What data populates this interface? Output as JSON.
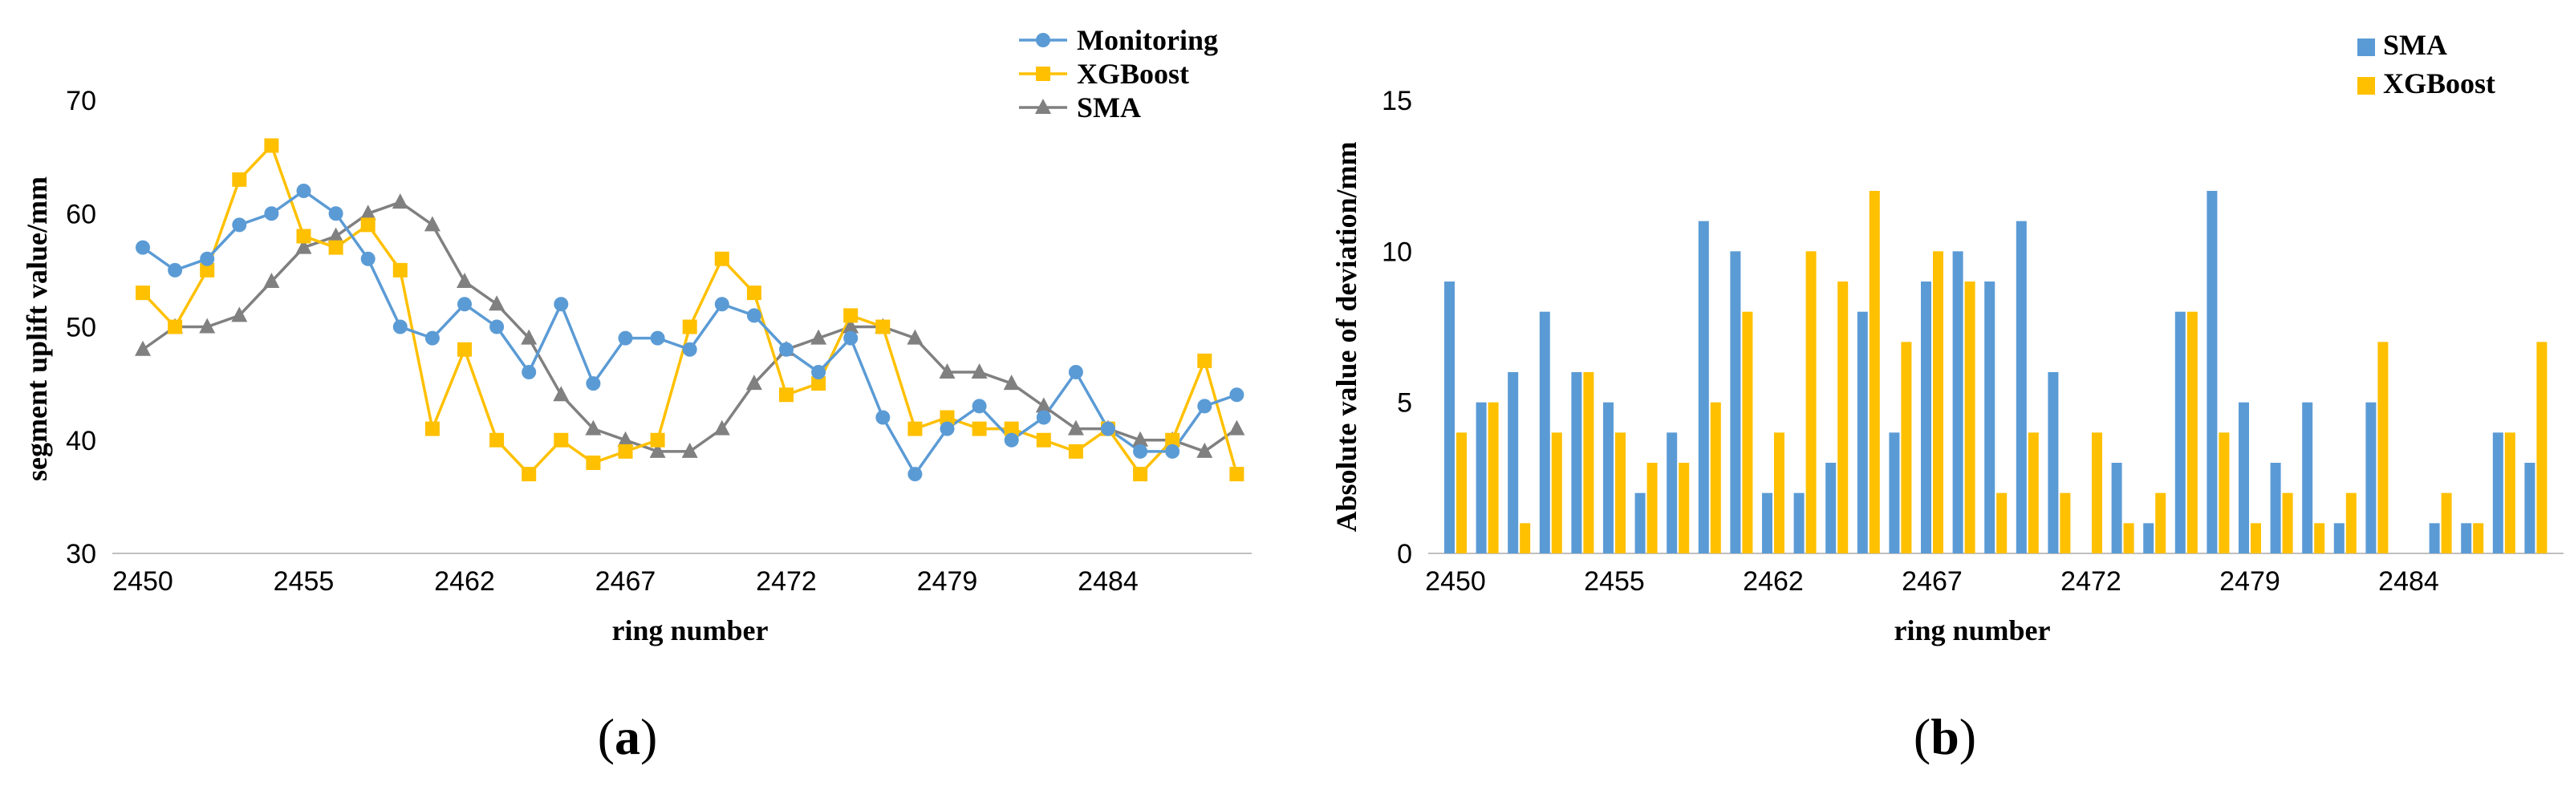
{
  "colors": {
    "monitoring": "#5B9BD5",
    "xgboost": "#FFC000",
    "sma": "#808080"
  },
  "chart_data": [
    {
      "panel": "a",
      "type": "line",
      "caption_letter": "a",
      "xlabel": "ring number",
      "ylabel": "segment uplift value/mm",
      "ylim": [
        30,
        70
      ],
      "yticks": [
        "30",
        "40",
        "50",
        "60",
        "70"
      ],
      "x_tick_labels": [
        "2450",
        "2455",
        "2462",
        "2467",
        "2472",
        "2479",
        "2484"
      ],
      "x_tick_indices": [
        0,
        5,
        10,
        15,
        20,
        25,
        30
      ],
      "series": [
        {
          "name": "Monitoring",
          "color_key": "monitoring",
          "marker": "circle",
          "values": [
            57,
            55,
            56,
            59,
            60,
            62,
            60,
            56,
            50,
            49,
            52,
            50,
            46,
            52,
            45,
            49,
            49,
            48,
            52,
            51,
            48,
            46,
            49,
            42,
            37,
            41,
            43,
            40,
            42,
            46,
            41,
            39,
            39,
            43,
            44
          ]
        },
        {
          "name": "XGBoost",
          "color_key": "xgboost",
          "marker": "square",
          "values": [
            53,
            50,
            55,
            63,
            66,
            58,
            57,
            59,
            55,
            41,
            48,
            40,
            37,
            40,
            38,
            39,
            40,
            50,
            56,
            53,
            44,
            45,
            51,
            50,
            41,
            42,
            41,
            41,
            40,
            39,
            41,
            37,
            40,
            47,
            37
          ]
        },
        {
          "name": "SMA",
          "color_key": "sma",
          "marker": "triangle",
          "values": [
            48,
            50,
            50,
            51,
            54,
            57,
            58,
            60,
            61,
            59,
            54,
            52,
            49,
            44,
            41,
            40,
            39,
            39,
            41,
            45,
            48,
            49,
            50,
            50,
            49,
            46,
            46,
            45,
            43,
            41,
            41,
            40,
            40,
            39,
            41
          ]
        }
      ]
    },
    {
      "panel": "b",
      "type": "bar",
      "caption_letter": "b",
      "xlabel": "ring number",
      "ylabel": "Absolute value of deviation/mm",
      "ylim": [
        0,
        15
      ],
      "yticks": [
        "0",
        "5",
        "10",
        "15"
      ],
      "x_tick_labels": [
        "2450",
        "2455",
        "2462",
        "2467",
        "2472",
        "2479",
        "2484"
      ],
      "x_tick_indices": [
        0,
        5,
        10,
        15,
        20,
        25,
        30
      ],
      "series": [
        {
          "name": "SMA",
          "color_key": "monitoring",
          "values": [
            9,
            5,
            6,
            8,
            6,
            5,
            2,
            4,
            11,
            10,
            2,
            2,
            3,
            8,
            4,
            9,
            10,
            9,
            11,
            6,
            0,
            3,
            1,
            8,
            12,
            5,
            3,
            5,
            1,
            5,
            0,
            1,
            1,
            4,
            3
          ]
        },
        {
          "name": "XGBoost",
          "color_key": "xgboost",
          "values": [
            4,
            5,
            1,
            4,
            6,
            4,
            3,
            3,
            5,
            8,
            4,
            10,
            9,
            12,
            7,
            10,
            9,
            2,
            4,
            2,
            4,
            1,
            2,
            8,
            4,
            1,
            2,
            1,
            2,
            7,
            0,
            2,
            1,
            4,
            7
          ]
        }
      ]
    }
  ]
}
